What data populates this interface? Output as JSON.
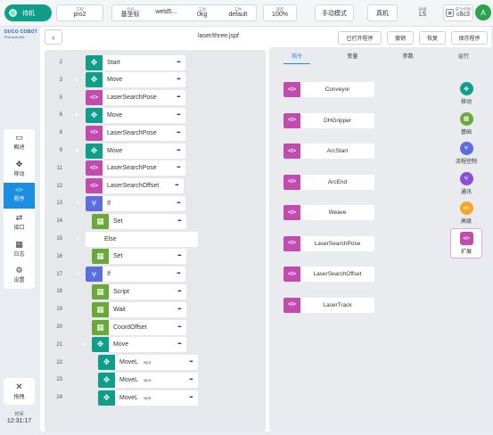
{
  "status": {
    "label": "待机",
    "color": "#0e9f8a"
  },
  "info_group_1": [
    {
      "label": "工程",
      "value": "pro2"
    }
  ],
  "info_group_2": [
    {
      "label": "全局",
      "value": "基坐标"
    },
    {
      "label": "",
      "value": "weld5..."
    },
    {
      "label": "工具",
      "value": "0kg"
    },
    {
      "label": "工件",
      "value": "default"
    }
  ],
  "speed": {
    "label": "速度",
    "value": "100%"
  },
  "mode_label": "手动模式",
  "real_label": "真机",
  "layer": {
    "label": "碰撞",
    "value": "L5"
  },
  "safety": {
    "label": "安全控制",
    "value": "c8c3",
    "icon": "safety-square-icon"
  },
  "avatar_letter": "A",
  "logo": {
    "main": "DUCO COBOT",
    "sub": "Premium AN"
  },
  "nav": [
    {
      "label": "概述",
      "icon": "monitor-icon",
      "glyph": "▭"
    },
    {
      "label": "移动",
      "icon": "move-icon",
      "glyph": "✥"
    },
    {
      "label": "程序",
      "icon": "code-icon",
      "glyph": "</>",
      "active": true
    },
    {
      "label": "接口",
      "icon": "swap-icon",
      "glyph": "⇄"
    },
    {
      "label": "日志",
      "icon": "calendar-icon",
      "glyph": "▦"
    },
    {
      "label": "设置",
      "icon": "gear-icon",
      "glyph": "⚙"
    }
  ],
  "nav_bottom": {
    "label": "拖拽",
    "icon": "drag-icon",
    "glyph": "✕"
  },
  "clock": {
    "label": "时间",
    "value": "12:31:17"
  },
  "header": {
    "filename": "laser/three.jspf",
    "buttons": [
      "已打开程序",
      "撤销",
      "恢复",
      "保存程序"
    ]
  },
  "tabs": [
    "指令",
    "变量",
    "参数",
    "运行"
  ],
  "commands": [
    "Conveyor",
    "DHGripper",
    "ArcStart",
    "ArcEnd",
    "Weave",
    "LaserSearchPose",
    "LaserSearchOffset",
    "LaserTrack"
  ],
  "categories": [
    {
      "label": "移动",
      "color": "#0e9f8a",
      "glyph": "✥",
      "icon": "move-icon"
    },
    {
      "label": "基础",
      "color": "#6aa83a",
      "glyph": "▦",
      "icon": "grid-icon"
    },
    {
      "label": "流程控制",
      "color": "#5a6ee0",
      "glyph": "⑂",
      "icon": "branch-icon"
    },
    {
      "label": "通讯",
      "color": "#8a4fd6",
      "glyph": "⑂",
      "icon": "comm-icon"
    },
    {
      "label": "高级",
      "color": "#f5a623",
      "glyph": "</>",
      "icon": "advanced-icon"
    },
    {
      "label": "扩展",
      "color": "#c24bb0",
      "glyph": "</>",
      "icon": "extension-icon",
      "selected": true
    }
  ],
  "colors": {
    "move": "#0e9f8a",
    "extension": "#c24bb0",
    "flow": "#5a6ee0",
    "basic": "#6aa83a",
    "accent": "#1a8ee0"
  },
  "program_lines": [
    {
      "line": 2,
      "indent": 0,
      "type": "move",
      "label": "Start"
    },
    {
      "line": 3,
      "indent": 0,
      "type": "move",
      "label": "Move",
      "caret": "right"
    },
    {
      "line": 5,
      "indent": 0,
      "type": "extension",
      "label": "LaserSearchPose"
    },
    {
      "line": 6,
      "indent": 0,
      "type": "move",
      "label": "Move",
      "caret": "right"
    },
    {
      "line": 8,
      "indent": 0,
      "type": "extension",
      "label": "LaserSearchPose"
    },
    {
      "line": 9,
      "indent": 0,
      "type": "move",
      "label": "Move",
      "caret": "right"
    },
    {
      "line": 11,
      "indent": 0,
      "type": "extension",
      "label": "LaserSearchPose"
    },
    {
      "line": 12,
      "indent": 0,
      "type": "extension",
      "label": "LaserSearchOffset"
    },
    {
      "line": 13,
      "indent": 0,
      "type": "flow",
      "label": "If",
      "caret": "down"
    },
    {
      "line": 14,
      "indent": 1,
      "type": "basic",
      "label": "Set"
    },
    {
      "line": 15,
      "indent": 0,
      "type": "plain",
      "label": "Else",
      "caret": "down"
    },
    {
      "line": 16,
      "indent": 1,
      "type": "basic",
      "label": "Set"
    },
    {
      "line": 17,
      "indent": 0,
      "type": "flow",
      "label": "If",
      "caret": "down"
    },
    {
      "line": 18,
      "indent": 1,
      "type": "basic",
      "label": "Script"
    },
    {
      "line": 19,
      "indent": 1,
      "type": "basic",
      "label": "Wait"
    },
    {
      "line": 20,
      "indent": 1,
      "type": "basic",
      "label": "CoordOffset"
    },
    {
      "line": 21,
      "indent": 1,
      "type": "move",
      "label": "Move",
      "caret": "down"
    },
    {
      "line": 22,
      "indent": 2,
      "type": "move",
      "label": "MoveL",
      "sub": "wp3"
    },
    {
      "line": 23,
      "indent": 2,
      "type": "move",
      "label": "MoveL",
      "sub": "wp4"
    },
    {
      "line": 24,
      "indent": 2,
      "type": "move",
      "label": "MoveL",
      "sub": "wp5"
    }
  ]
}
